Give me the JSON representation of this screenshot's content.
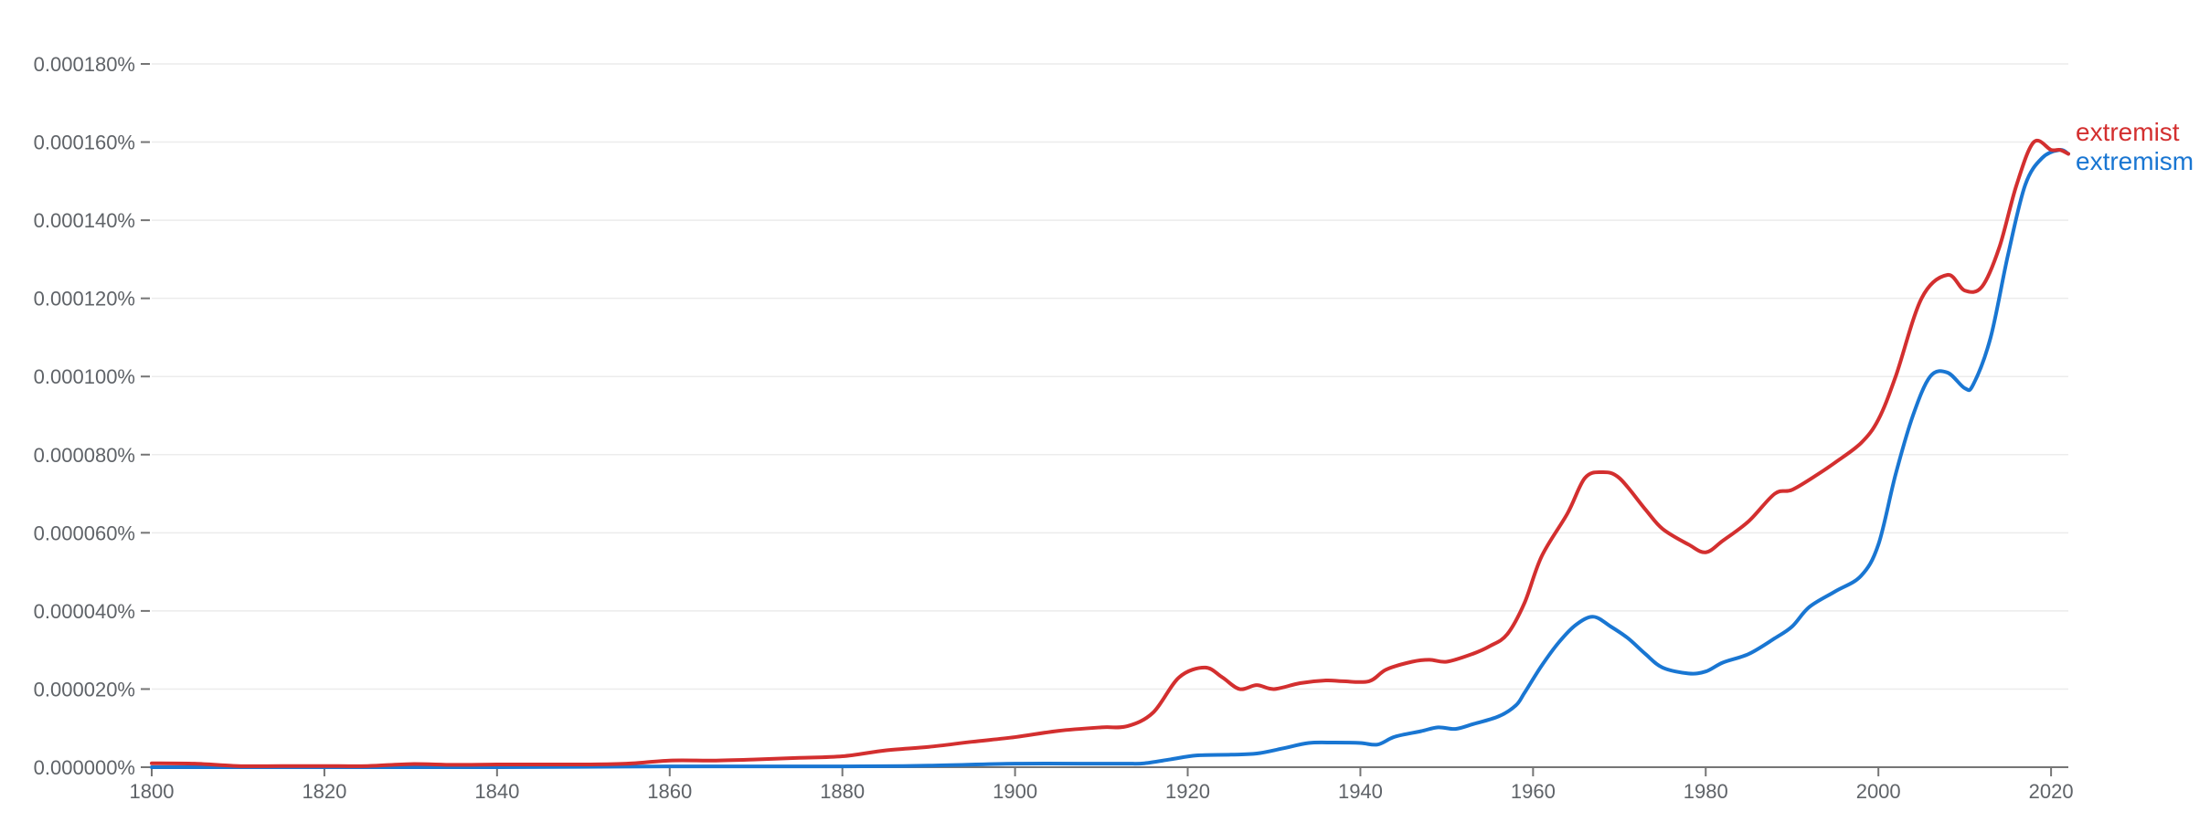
{
  "chart_data": {
    "type": "line",
    "title": "",
    "xlabel": "",
    "ylabel": "",
    "xlim": [
      1800,
      2022
    ],
    "ylim": [
      0,
      0.00018
    ],
    "grid": true,
    "legend": "inline-right",
    "x_ticks": [
      1800,
      1820,
      1840,
      1860,
      1880,
      1900,
      1920,
      1940,
      1960,
      1980,
      2000,
      2020
    ],
    "y_ticks": [
      0,
      2e-05,
      4e-05,
      6e-05,
      8e-05,
      0.0001,
      0.00012,
      0.00014,
      0.00016,
      0.00018
    ],
    "y_tick_labels": [
      "0.000000%",
      "0.000020%",
      "0.000040%",
      "0.000060%",
      "0.000080%",
      "0.000100%",
      "0.000120%",
      "0.000140%",
      "0.000160%",
      "0.000180%"
    ],
    "series": [
      {
        "name": "extremist",
        "color": "#d32f2f",
        "points": [
          [
            1800,
            1e-06
          ],
          [
            1805,
            9e-07
          ],
          [
            1810,
            3e-07
          ],
          [
            1815,
            3e-07
          ],
          [
            1820,
            3e-07
          ],
          [
            1825,
            3e-07
          ],
          [
            1830,
            8e-07
          ],
          [
            1835,
            6e-07
          ],
          [
            1840,
            7e-07
          ],
          [
            1845,
            7e-07
          ],
          [
            1850,
            7e-07
          ],
          [
            1855,
            9e-07
          ],
          [
            1860,
            1.7e-06
          ],
          [
            1865,
            1.7e-06
          ],
          [
            1870,
            2e-06
          ],
          [
            1875,
            2.4e-06
          ],
          [
            1880,
            2.8e-06
          ],
          [
            1885,
            4.3e-06
          ],
          [
            1890,
            5.2e-06
          ],
          [
            1895,
            6.5e-06
          ],
          [
            1900,
            7.7e-06
          ],
          [
            1905,
            9.3e-06
          ],
          [
            1910,
            1.02e-05
          ],
          [
            1913,
            1.05e-05
          ],
          [
            1916,
            1.4e-05
          ],
          [
            1919,
            2.3e-05
          ],
          [
            1922,
            2.55e-05
          ],
          [
            1924,
            2.3e-05
          ],
          [
            1926,
            2e-05
          ],
          [
            1928,
            2.1e-05
          ],
          [
            1930,
            2e-05
          ],
          [
            1933,
            2.15e-05
          ],
          [
            1936,
            2.22e-05
          ],
          [
            1938,
            2.2e-05
          ],
          [
            1941,
            2.2e-05
          ],
          [
            1943,
            2.5e-05
          ],
          [
            1946,
            2.7e-05
          ],
          [
            1948,
            2.75e-05
          ],
          [
            1950,
            2.7e-05
          ],
          [
            1953,
            2.9e-05
          ],
          [
            1955,
            3.1e-05
          ],
          [
            1957,
            3.4e-05
          ],
          [
            1959,
            4.2e-05
          ],
          [
            1961,
            5.4e-05
          ],
          [
            1964,
            6.5e-05
          ],
          [
            1966,
            7.4e-05
          ],
          [
            1968,
            7.55e-05
          ],
          [
            1970,
            7.4e-05
          ],
          [
            1973,
            6.6e-05
          ],
          [
            1975,
            6.1e-05
          ],
          [
            1978,
            5.7e-05
          ],
          [
            1980,
            5.5e-05
          ],
          [
            1982,
            5.8e-05
          ],
          [
            1985,
            6.3e-05
          ],
          [
            1988,
            7e-05
          ],
          [
            1990,
            7.1e-05
          ],
          [
            1993,
            7.5e-05
          ],
          [
            1995,
            7.8e-05
          ],
          [
            1998,
            8.3e-05
          ],
          [
            2000,
            8.9e-05
          ],
          [
            2002,
            0.0001
          ],
          [
            2005,
            0.00012
          ],
          [
            2008,
            0.000126
          ],
          [
            2010,
            0.000122
          ],
          [
            2012,
            0.000123
          ],
          [
            2014,
            0.000133
          ],
          [
            2016,
            0.000149
          ],
          [
            2018,
            0.00016
          ],
          [
            2020,
            0.000158
          ],
          [
            2021,
            0.000158
          ],
          [
            2022,
            0.000157
          ]
        ]
      },
      {
        "name": "extremism",
        "color": "#1976d2",
        "points": [
          [
            1800,
            0
          ],
          [
            1840,
            0
          ],
          [
            1860,
            2e-07
          ],
          [
            1880,
            2e-07
          ],
          [
            1890,
            4e-07
          ],
          [
            1900,
            9e-07
          ],
          [
            1910,
            9e-07
          ],
          [
            1913,
            9e-07
          ],
          [
            1915,
            1e-06
          ],
          [
            1918,
            2e-06
          ],
          [
            1921,
            3e-06
          ],
          [
            1925,
            3.2e-06
          ],
          [
            1928,
            3.5e-06
          ],
          [
            1931,
            4.8e-06
          ],
          [
            1934,
            6.2e-06
          ],
          [
            1937,
            6.3e-06
          ],
          [
            1940,
            6.2e-06
          ],
          [
            1942,
            5.8e-06
          ],
          [
            1944,
            7.8e-06
          ],
          [
            1947,
            9.2e-06
          ],
          [
            1949,
            1.02e-05
          ],
          [
            1951,
            9.8e-06
          ],
          [
            1953,
            1.1e-05
          ],
          [
            1956,
            1.3e-05
          ],
          [
            1958,
            1.58e-05
          ],
          [
            1959,
            1.9e-05
          ],
          [
            1961,
            2.6e-05
          ],
          [
            1963,
            3.2e-05
          ],
          [
            1965,
            3.65e-05
          ],
          [
            1967,
            3.85e-05
          ],
          [
            1969,
            3.6e-05
          ],
          [
            1971,
            3.3e-05
          ],
          [
            1973,
            2.9e-05
          ],
          [
            1975,
            2.55e-05
          ],
          [
            1978,
            2.4e-05
          ],
          [
            1980,
            2.45e-05
          ],
          [
            1982,
            2.68e-05
          ],
          [
            1985,
            2.9e-05
          ],
          [
            1988,
            3.3e-05
          ],
          [
            1990,
            3.6e-05
          ],
          [
            1992,
            4.1e-05
          ],
          [
            1995,
            4.5e-05
          ],
          [
            1998,
            4.9e-05
          ],
          [
            2000,
            5.7e-05
          ],
          [
            2002,
            7.5e-05
          ],
          [
            2004,
            9e-05
          ],
          [
            2006,
            0.0001
          ],
          [
            2008,
            0.000101
          ],
          [
            2010,
            9.7e-05
          ],
          [
            2011,
            9.8e-05
          ],
          [
            2013,
            0.00011
          ],
          [
            2015,
            0.000131
          ],
          [
            2017,
            0.000149
          ],
          [
            2019,
            0.000156
          ],
          [
            2021,
            0.000158
          ],
          [
            2022,
            0.000157
          ]
        ]
      }
    ]
  }
}
